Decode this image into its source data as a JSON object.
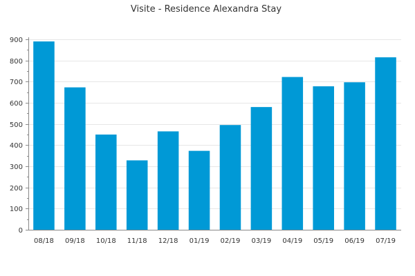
{
  "chart_data": {
    "type": "bar",
    "title": "Visite - Residence Alexandra Stay",
    "categories": [
      "08/18",
      "09/18",
      "10/18",
      "11/18",
      "12/18",
      "01/19",
      "02/19",
      "03/19",
      "04/19",
      "05/19",
      "06/19",
      "07/19"
    ],
    "values": [
      890,
      673,
      450,
      328,
      465,
      373,
      495,
      580,
      722,
      678,
      697,
      815
    ],
    "xlabel": "",
    "ylabel": "",
    "ylim": [
      0,
      900
    ],
    "yticks": [
      0,
      100,
      200,
      300,
      400,
      500,
      600,
      700,
      800,
      900
    ],
    "grid": true,
    "legend": "none",
    "bar_color": "#0099d6"
  }
}
